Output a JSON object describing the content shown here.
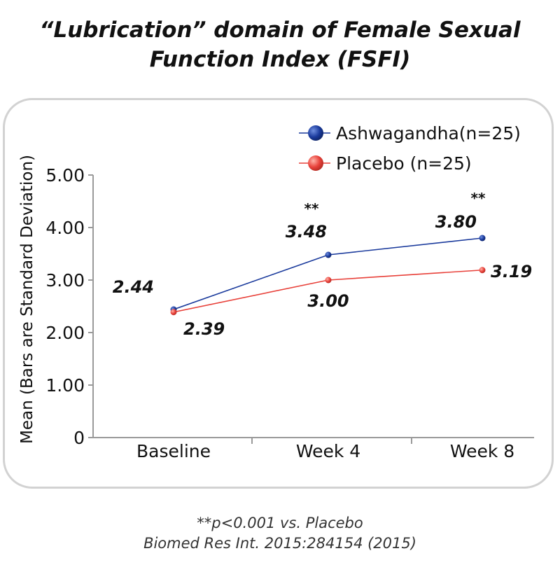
{
  "title_line1": "“Lubrication” domain of Female Sexual",
  "title_line2": "Function Index (FSFI)",
  "chart_data": {
    "type": "line",
    "title": "“Lubrication” domain of Female Sexual Function Index (FSFI)",
    "xlabel": "",
    "ylabel": "Mean (Bars are Standard Deviation)",
    "categories": [
      "Baseline",
      "Week 4",
      "Week 8"
    ],
    "y_tick_labels": [
      "0",
      "1.00",
      "2.00",
      "3.00",
      "4.00",
      "5.00"
    ],
    "y_ticks": [
      0,
      1,
      2,
      3,
      4,
      5
    ],
    "ylim": [
      0,
      5
    ],
    "grid": false,
    "legend_position": "top-right",
    "series": [
      {
        "name": "Ashwagandha(n=25)",
        "values": [
          2.44,
          3.48,
          3.8
        ],
        "labels": [
          "2.44",
          "3.48",
          "3.80"
        ],
        "color": "#1a3a9c",
        "significance": [
          "",
          "**",
          "**"
        ]
      },
      {
        "name": "Placebo (n=25)",
        "values": [
          2.39,
          3.0,
          3.19
        ],
        "labels": [
          "2.39",
          "3.00",
          "3.19"
        ],
        "color": "#e8413a",
        "significance": [
          "",
          "",
          ""
        ]
      }
    ]
  },
  "footnote_line1": "**p<0.001 vs. Placebo",
  "footnote_line2": "Biomed Res Int. 2015:284154 (2015)"
}
